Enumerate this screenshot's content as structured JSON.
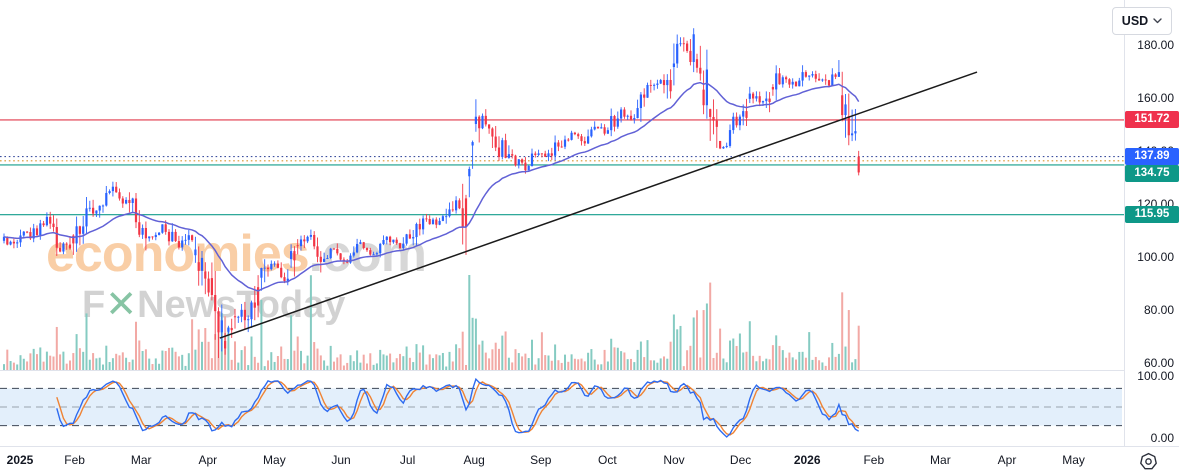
{
  "header": {
    "currency_label": "USD"
  },
  "watermark": {
    "line1_main": "economies",
    "line1_suffix": ".com",
    "line2_first": "F",
    "line2_x": "✕",
    "line2_rest": "NewsToday"
  },
  "price_axis": {
    "ticks": [
      {
        "label": "180.00",
        "value": 180
      },
      {
        "label": "160.00",
        "value": 160
      },
      {
        "label": "140.00",
        "value": 140
      },
      {
        "label": "120.00",
        "value": 120
      },
      {
        "label": "100.00",
        "value": 100
      },
      {
        "label": "80.00",
        "value": 80
      },
      {
        "label": "60.00",
        "value": 60
      }
    ]
  },
  "time_axis": {
    "labels": [
      {
        "label": "2025",
        "t": 0,
        "year": true
      },
      {
        "label": "Feb",
        "t": 1
      },
      {
        "label": "Mar",
        "t": 2
      },
      {
        "label": "Apr",
        "t": 3
      },
      {
        "label": "May",
        "t": 4
      },
      {
        "label": "Jun",
        "t": 5
      },
      {
        "label": "Jul",
        "t": 6
      },
      {
        "label": "Aug",
        "t": 7
      },
      {
        "label": "Sep",
        "t": 8
      },
      {
        "label": "Oct",
        "t": 9
      },
      {
        "label": "Nov",
        "t": 10
      },
      {
        "label": "Dec",
        "t": 11
      },
      {
        "label": "2026",
        "t": 12,
        "year": true
      },
      {
        "label": "Feb",
        "t": 13
      },
      {
        "label": "Mar",
        "t": 14
      },
      {
        "label": "Apr",
        "t": 15
      },
      {
        "label": "May",
        "t": 16
      }
    ]
  },
  "chart_data": {
    "type": "candlestick",
    "currency": "USD",
    "price_range": [
      60,
      185
    ],
    "x_range_months": [
      "Jan 2025",
      "May 2026"
    ],
    "candle_count": 260,
    "candle_colors": {
      "up": "#2962ff",
      "down": "#f23645"
    },
    "volume_colors": {
      "up": "#85cbc2",
      "down": "#f2a9a5"
    },
    "price_path": [
      [
        0,
        106
      ],
      [
        0.35,
        109
      ],
      [
        0.6,
        114
      ],
      [
        0.8,
        103
      ],
      [
        1.0,
        109
      ],
      [
        1.3,
        119
      ],
      [
        1.55,
        126
      ],
      [
        1.72,
        120
      ],
      [
        1.85,
        124
      ],
      [
        2.0,
        112
      ],
      [
        2.2,
        108
      ],
      [
        2.35,
        112
      ],
      [
        2.55,
        103
      ],
      [
        2.7,
        108
      ],
      [
        2.9,
        95
      ],
      [
        3.05,
        94
      ],
      [
        3.15,
        78
      ],
      [
        3.25,
        68
      ],
      [
        3.45,
        80
      ],
      [
        3.6,
        76
      ],
      [
        3.8,
        92
      ],
      [
        4.0,
        97
      ],
      [
        4.15,
        93
      ],
      [
        4.35,
        104
      ],
      [
        4.55,
        110
      ],
      [
        4.7,
        100
      ],
      [
        4.9,
        103
      ],
      [
        5.1,
        98
      ],
      [
        5.3,
        104
      ],
      [
        5.5,
        101
      ],
      [
        5.7,
        107
      ],
      [
        5.9,
        104
      ],
      [
        6.1,
        110
      ],
      [
        6.3,
        114
      ],
      [
        6.5,
        112
      ],
      [
        6.7,
        118
      ],
      [
        6.9,
        123
      ],
      [
        7.0,
        149
      ],
      [
        7.15,
        153
      ],
      [
        7.3,
        143
      ],
      [
        7.5,
        139
      ],
      [
        7.65,
        136
      ],
      [
        7.78,
        134.5
      ],
      [
        7.95,
        141
      ],
      [
        8.1,
        138
      ],
      [
        8.3,
        144
      ],
      [
        8.5,
        147
      ],
      [
        8.62,
        143
      ],
      [
        8.8,
        150
      ],
      [
        9.0,
        147
      ],
      [
        9.2,
        156
      ],
      [
        9.35,
        152
      ],
      [
        9.55,
        160
      ],
      [
        9.7,
        165
      ],
      [
        9.85,
        163
      ],
      [
        10.0,
        172
      ],
      [
        10.12,
        181
      ],
      [
        10.22,
        176
      ],
      [
        10.32,
        178
      ],
      [
        10.45,
        163
      ],
      [
        10.6,
        152
      ],
      [
        10.75,
        139
      ],
      [
        10.9,
        150
      ],
      [
        11.05,
        155
      ],
      [
        11.2,
        162
      ],
      [
        11.35,
        158
      ],
      [
        11.5,
        165
      ],
      [
        11.65,
        169
      ],
      [
        11.8,
        164
      ],
      [
        11.95,
        168
      ],
      [
        12.1,
        170
      ],
      [
        12.25,
        165
      ],
      [
        12.4,
        168
      ],
      [
        12.55,
        160
      ],
      [
        12.7,
        145
      ],
      [
        12.8,
        136
      ],
      [
        12.88,
        137.9
      ]
    ],
    "levels": [
      {
        "label": "151.72",
        "value": 151.72,
        "line_color": "#e0394b",
        "style": "solid",
        "badge_color": "#ef314d"
      },
      {
        "label": "137.89",
        "value": 137.89,
        "line_color": "#3d4f9e",
        "style": "dotted",
        "badge_color": "#2962ff"
      },
      {
        "label": "",
        "value": 136.3,
        "line_color": "#d9952f",
        "style": "dotted",
        "badge_color": null
      },
      {
        "label": "134.75",
        "value": 134.75,
        "line_color": "#139d8b",
        "style": "solid",
        "badge_color": "#0e9888"
      },
      {
        "label": "115.95",
        "value": 115.95,
        "line_color": "#139d8b",
        "style": "solid",
        "badge_color": "#0e9888"
      }
    ],
    "trendline": {
      "t1": 3.18,
      "p1": 69.4,
      "t2": 14.55,
      "p2": 169.8,
      "color": "#1b1b1b"
    },
    "moving_average": {
      "period": 28,
      "color": "#6161d6"
    },
    "volume_spikes": [
      [
        1.2,
        55
      ],
      [
        2.75,
        48
      ],
      [
        3.2,
        60
      ],
      [
        4.55,
        92
      ],
      [
        7.02,
        50
      ],
      [
        8.0,
        38
      ],
      [
        10.12,
        42
      ],
      [
        11.0,
        35
      ],
      [
        12.05,
        40
      ],
      [
        12.75,
        45
      ]
    ],
    "oscillator": {
      "name": "stochastic",
      "k_period": 12,
      "k_smooth": 3,
      "d_period": 3,
      "k_color": "#2e6bf0",
      "d_color": "#ef8334",
      "band_fill": "#d9e9fa",
      "levels": {
        "upper": 80,
        "middle": 50,
        "lower": 20
      },
      "range": [
        0,
        100
      ],
      "ticks": [
        {
          "label": "100.00",
          "value": 100
        },
        {
          "label": "0.00",
          "value": 0
        }
      ]
    }
  }
}
